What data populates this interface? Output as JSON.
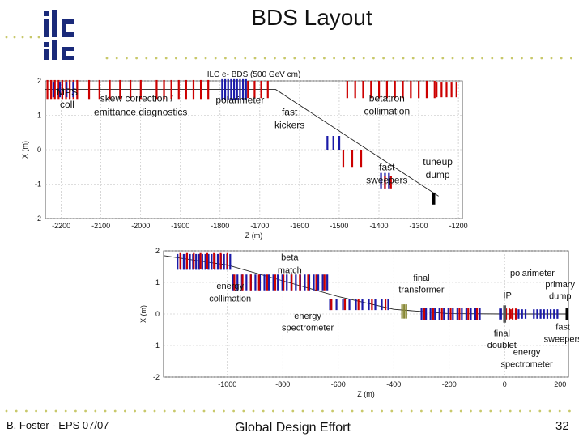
{
  "slide": {
    "title": "BDS Layout",
    "logo_text": "ilc",
    "footer_left": "B. Foster - EPS 07/07",
    "footer_center": "Global Design Effort",
    "page_number": "32",
    "accent_dots_color": "#c8c86a"
  },
  "chart_data": [
    {
      "type": "scatter",
      "title": "ILC e- BDS (500 GeV cm)",
      "xlabel": "Z (m)",
      "ylabel": "X (m)",
      "xlim": [
        -2240,
        -1190
      ],
      "ylim": [
        -2,
        2
      ],
      "xticks": [
        -2200,
        -2100,
        -2000,
        -1900,
        -1800,
        -1700,
        -1600,
        -1500,
        -1400,
        -1300,
        -1200
      ],
      "yticks": [
        2,
        1,
        0,
        -1,
        -2
      ],
      "grid": true,
      "beamline": [
        [
          -2240,
          1.75
        ],
        [
          -1660,
          1.75
        ],
        [
          -1250,
          -1.35
        ]
      ],
      "element_groups": [
        {
          "color": "#cc0000",
          "z_from": -2235,
          "z_to": -2160,
          "count": 9,
          "x_center": 1.75,
          "height": 0.55
        },
        {
          "color": "#1a1aa8",
          "z_from": -2220,
          "z_to": -2170,
          "count": 4,
          "x_center": 1.75,
          "height": 0.45
        },
        {
          "color": "#cc0000",
          "z_from": -2130,
          "z_to": -2000,
          "count": 6,
          "x_center": 1.75,
          "height": 0.55
        },
        {
          "color": "#cc0000",
          "z_from": -1960,
          "z_to": -1830,
          "count": 8,
          "x_center": 1.75,
          "height": 0.55
        },
        {
          "color": "#1a1aa8",
          "z_from": -1795,
          "z_to": -1735,
          "count": 9,
          "x_center": 1.75,
          "height": 0.6
        },
        {
          "color": "#cc0000",
          "z_from": -1730,
          "z_to": -1680,
          "count": 4,
          "x_center": 1.75,
          "height": 0.5
        },
        {
          "color": "#1a1aa8",
          "z_from": -1530,
          "z_to": -1500,
          "count": 3,
          "x_center": 0.2,
          "height": 0.4
        },
        {
          "color": "#cc0000",
          "z_from": -1490,
          "z_to": -1445,
          "count": 3,
          "x_center": -0.25,
          "height": 0.5
        },
        {
          "color": "#1a1aa8",
          "z_from": -1395,
          "z_to": -1375,
          "count": 3,
          "x_center": -0.9,
          "height": 0.45
        },
        {
          "color": "#cc0000",
          "z_from": -1385,
          "z_to": -1370,
          "count": 2,
          "x_center": -0.95,
          "height": 0.35
        },
        {
          "color": "#cc0000",
          "z_from": -1480,
          "z_to": -1260,
          "count": 12,
          "x_center": 1.75,
          "height": 0.5
        },
        {
          "color": "#cc0000",
          "z_from": -1255,
          "z_to": -1205,
          "count": 5,
          "x_center": 1.75,
          "height": 0.45
        }
      ],
      "marks": [
        {
          "z": -1262,
          "x": -1.42,
          "height": 0.35,
          "color": "#000000"
        }
      ],
      "annotations": [
        {
          "text": "MPS",
          "z": -2185,
          "x": 1.58
        },
        {
          "text": "coll",
          "z": -2185,
          "x": 1.22
        },
        {
          "text": "skew correction /",
          "z": -2010,
          "x": 1.4
        },
        {
          "text": "emittance diagnostics",
          "z": -2000,
          "x": 1.0
        },
        {
          "text": "polarimeter",
          "z": -1750,
          "x": 1.35
        },
        {
          "text": "fast",
          "z": -1625,
          "x": 1.0
        },
        {
          "text": "kickers",
          "z": -1625,
          "x": 0.62
        },
        {
          "text": "betatron",
          "z": -1380,
          "x": 1.4
        },
        {
          "text": "collimation",
          "z": -1380,
          "x": 1.02
        },
        {
          "text": "fast",
          "z": -1380,
          "x": -0.6
        },
        {
          "text": "sweepers",
          "z": -1380,
          "x": -0.98
        },
        {
          "text": "tuneup",
          "z": -1252,
          "x": -0.45
        },
        {
          "text": "dump",
          "z": -1252,
          "x": -0.82
        }
      ]
    },
    {
      "type": "scatter",
      "xlabel": "Z (m)",
      "ylabel": "X (m)",
      "xlim": [
        -1230,
        230
      ],
      "ylim": [
        -2,
        2
      ],
      "xticks": [
        -1000,
        -800,
        -600,
        -400,
        -200,
        0,
        200
      ],
      "yticks": [
        2,
        1,
        0,
        -1,
        -2
      ],
      "grid": true,
      "beamline": [
        [
          -1230,
          1.85
        ],
        [
          -1000,
          1.55
        ],
        [
          -800,
          1.05
        ],
        [
          -600,
          0.55
        ],
        [
          -400,
          0.15
        ],
        [
          -200,
          0.01
        ],
        [
          0,
          0
        ],
        [
          230,
          0
        ]
      ],
      "element_groups": [
        {
          "color": "#1a1aa8",
          "z_from": -1180,
          "z_to": -990,
          "count": 18,
          "x_center": 1.65,
          "height": 0.5
        },
        {
          "color": "#cc0000",
          "z_from": -1170,
          "z_to": -1000,
          "count": 8,
          "x_center": 1.68,
          "height": 0.5
        },
        {
          "color": "#1a1aa8",
          "z_from": -980,
          "z_to": -640,
          "count": 22,
          "x_center": 1.0,
          "height": 0.5
        },
        {
          "color": "#cc0000",
          "z_from": -975,
          "z_to": -650,
          "count": 12,
          "x_center": 1.0,
          "height": 0.5
        },
        {
          "color": "#1a1aa8",
          "z_from": -630,
          "z_to": -420,
          "count": 10,
          "x_center": 0.3,
          "height": 0.35
        },
        {
          "color": "#cc0000",
          "z_from": -625,
          "z_to": -430,
          "count": 5,
          "x_center": 0.3,
          "height": 0.35
        },
        {
          "color": "#888833",
          "z_from": -370,
          "z_to": -355,
          "count": 3,
          "x_center": 0.08,
          "height": 0.45
        },
        {
          "color": "#1a1aa8",
          "z_from": -300,
          "z_to": -90,
          "count": 14,
          "x_center": 0.0,
          "height": 0.4
        },
        {
          "color": "#cc0000",
          "z_from": -290,
          "z_to": -100,
          "count": 7,
          "x_center": 0.0,
          "height": 0.4
        },
        {
          "color": "#cc0000",
          "z_from": 5,
          "z_to": 40,
          "count": 4,
          "x_center": 0.0,
          "height": 0.35
        },
        {
          "color": "#1a1aa8",
          "z_from": 50,
          "z_to": 75,
          "count": 3,
          "x_center": 0.0,
          "height": 0.3
        },
        {
          "color": "#1a1aa8",
          "z_from": 105,
          "z_to": 190,
          "count": 8,
          "x_center": 0.0,
          "height": 0.3
        }
      ],
      "marks": [
        {
          "z": -15,
          "x": 0.0,
          "height": 0.35,
          "color": "#1a1aa8"
        },
        {
          "z": 0,
          "x": 0.0,
          "height": 0.55,
          "color": "#555555"
        },
        {
          "z": 20,
          "x": 0.0,
          "height": 0.3,
          "color": "#cc0000"
        },
        {
          "z": 225,
          "x": 0.0,
          "height": 0.4,
          "color": "#000000"
        }
      ],
      "annotations": [
        {
          "text": "beta",
          "z": -775,
          "x": 1.7
        },
        {
          "text": "match",
          "z": -775,
          "x": 1.3
        },
        {
          "text": "energy",
          "z": -990,
          "x": 0.8
        },
        {
          "text": "collimation",
          "z": -990,
          "x": 0.4
        },
        {
          "text": "final",
          "z": -300,
          "x": 1.05
        },
        {
          "text": "transformer",
          "z": -300,
          "x": 0.68
        },
        {
          "text": "energy",
          "z": -710,
          "x": -0.15
        },
        {
          "text": "spectrometer",
          "z": -710,
          "x": -0.52
        },
        {
          "text": "IP",
          "z": 10,
          "x": 0.5
        },
        {
          "text": "polarimeter",
          "z": 100,
          "x": 1.2
        },
        {
          "text": "primary",
          "z": 200,
          "x": 0.85
        },
        {
          "text": "dump",
          "z": 200,
          "x": 0.48
        },
        {
          "text": "final",
          "z": -10,
          "x": -0.7
        },
        {
          "text": "doublet",
          "z": -10,
          "x": -1.08
        },
        {
          "text": "fast",
          "z": 210,
          "x": -0.5
        },
        {
          "text": "sweepers",
          "z": 210,
          "x": -0.88
        },
        {
          "text": "energy",
          "z": 80,
          "x": -1.3
        },
        {
          "text": "spectrometer",
          "z": 80,
          "x": -1.68
        }
      ]
    }
  ]
}
